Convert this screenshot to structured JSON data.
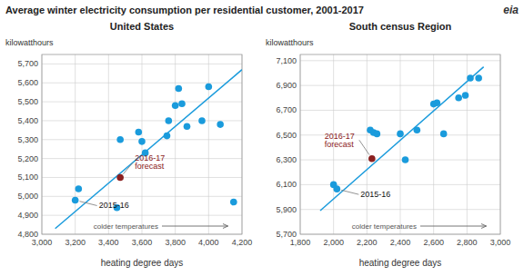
{
  "title": "Average winter electricity consumption per residential customer, 2001-2017",
  "annotations": [
    {
      "text": "eia"
    }
  ],
  "chart_data": [
    {
      "type": "scatter",
      "title": "United States",
      "x_label": "heating degree days",
      "y_label": "kilowatthours",
      "xlim": [
        3000,
        4200
      ],
      "ylim": [
        4800,
        5750
      ],
      "xticks": [
        {
          "value": 3000,
          "label": "3,000"
        },
        {
          "value": 3200,
          "label": "3,200"
        },
        {
          "value": 3400,
          "label": "3,400"
        },
        {
          "value": 3600,
          "label": "3,600"
        },
        {
          "value": 3800,
          "label": "3,800"
        },
        {
          "value": 4000,
          "label": "4,000"
        },
        {
          "value": 4200,
          "label": "4,200"
        }
      ],
      "yticks": [
        {
          "value": 4800,
          "label": "4,800"
        },
        {
          "value": 4900,
          "label": "4,900"
        },
        {
          "value": 5000,
          "label": "5,000"
        },
        {
          "value": 5100,
          "label": "5,100"
        },
        {
          "value": 5200,
          "label": "5,200"
        },
        {
          "value": 5300,
          "label": "5,300"
        },
        {
          "value": 5400,
          "label": "5,400"
        },
        {
          "value": 5500,
          "label": "5,500"
        },
        {
          "value": 5600,
          "label": "5,600"
        },
        {
          "value": 5700,
          "label": "5,700"
        }
      ],
      "grid": true,
      "series": [
        {
          "color": "#1a9bdc",
          "x": [
            3200,
            3220,
            3450,
            3470,
            3580,
            3600,
            3620,
            3750,
            3760,
            3800,
            3820,
            3840,
            3870,
            3960,
            4000,
            4070,
            4150
          ],
          "values": [
            4980,
            5040,
            4940,
            5300,
            5340,
            5290,
            5230,
            5320,
            5400,
            5480,
            5570,
            5490,
            5370,
            5400,
            5580,
            5380,
            4970
          ]
        },
        {
          "color": "#8B2020",
          "x": [
            3470
          ],
          "values": [
            5100
          ]
        },
        {
          "type": "line",
          "color": "#1a9bdc",
          "x": [
            3080,
            4200
          ],
          "values": [
            4830,
            5670
          ]
        }
      ],
      "annotations": [
        {
          "text": "2015-16",
          "x": 3200,
          "y": 4980
        },
        {
          "text": "2016-17\nforecast",
          "x": 3470,
          "y": 5100,
          "color": "#8B2020"
        },
        {
          "text": "colder temperatures"
        }
      ]
    },
    {
      "type": "scatter",
      "title": "South census Region",
      "x_label": "heating degree days",
      "y_label": "kilowatthours",
      "xlim": [
        1800,
        3000
      ],
      "ylim": [
        5700,
        7150
      ],
      "xticks": [
        {
          "value": 1800,
          "label": "1,800"
        },
        {
          "value": 2000,
          "label": "2,000"
        },
        {
          "value": 2200,
          "label": "2,200"
        },
        {
          "value": 2400,
          "label": "2,400"
        },
        {
          "value": 2600,
          "label": "2,600"
        },
        {
          "value": 2800,
          "label": "2,800"
        },
        {
          "value": 3000,
          "label": "3,000"
        }
      ],
      "yticks": [
        {
          "value": 5700,
          "label": "5,700"
        },
        {
          "value": 5900,
          "label": "5,900"
        },
        {
          "value": 6100,
          "label": "6,100"
        },
        {
          "value": 6300,
          "label": "6,300"
        },
        {
          "value": 6500,
          "label": "6,500"
        },
        {
          "value": 6700,
          "label": "6,700"
        },
        {
          "value": 6900,
          "label": "6,900"
        },
        {
          "value": 7100,
          "label": "7,100"
        }
      ],
      "grid": true,
      "series": [
        {
          "color": "#1a9bdc",
          "x": [
            2000,
            2020,
            2220,
            2240,
            2260,
            2400,
            2430,
            2500,
            2600,
            2620,
            2660,
            2750,
            2790,
            2820,
            2870
          ],
          "values": [
            6100,
            6065,
            6540,
            6520,
            6510,
            6510,
            6300,
            6540,
            6750,
            6760,
            6510,
            6800,
            6820,
            6960,
            6960
          ]
        },
        {
          "color": "#8B2020",
          "x": [
            2230
          ],
          "values": [
            6310
          ]
        },
        {
          "type": "line",
          "color": "#1a9bdc",
          "x": [
            1920,
            2900
          ],
          "values": [
            5890,
            7050
          ]
        }
      ],
      "annotations": [
        {
          "text": "2015-16",
          "x": 2020,
          "y": 6065
        },
        {
          "text": "2016-17\nforecast",
          "x": 2230,
          "y": 6310,
          "color": "#8B2020"
        },
        {
          "text": "colder temperatures"
        }
      ]
    }
  ]
}
